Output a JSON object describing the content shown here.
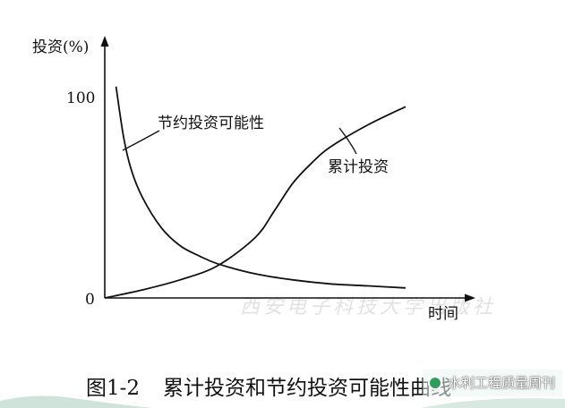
{
  "chart_data": {
    "type": "line",
    "ylabel": "投资(%)",
    "xlabel": "时间",
    "yticks": [
      "100",
      "0"
    ],
    "ylim": [
      0,
      100
    ],
    "xlim": [
      0,
      10
    ],
    "series": [
      {
        "name": "节约投资可能性",
        "x": [
          0.3,
          0.5,
          0.7,
          1.0,
          1.5,
          2.0,
          2.5,
          3.0,
          4.0,
          5.0,
          6.0,
          7.0,
          8.0
        ],
        "y": [
          105,
          80,
          64,
          50,
          35,
          26,
          21,
          17,
          12,
          9,
          7,
          6,
          5
        ]
      },
      {
        "name": "累计投资",
        "x": [
          0,
          1.0,
          2.0,
          3.0,
          4.0,
          4.5,
          5.0,
          5.5,
          6.0,
          7.0,
          8.0
        ],
        "y": [
          0,
          4,
          9,
          16,
          30,
          43,
          57,
          67,
          75,
          86,
          95
        ]
      }
    ]
  },
  "caption": {
    "number": "图1-2",
    "text": "累计投资和节约投资可能性曲线"
  },
  "watermark": {
    "source": "西安电子科技大学出版社",
    "tag": "水利工程质量周刊"
  },
  "colors": {
    "line": "#111111",
    "watermark": "#e2e2e2",
    "deco": "#cfe3da"
  }
}
